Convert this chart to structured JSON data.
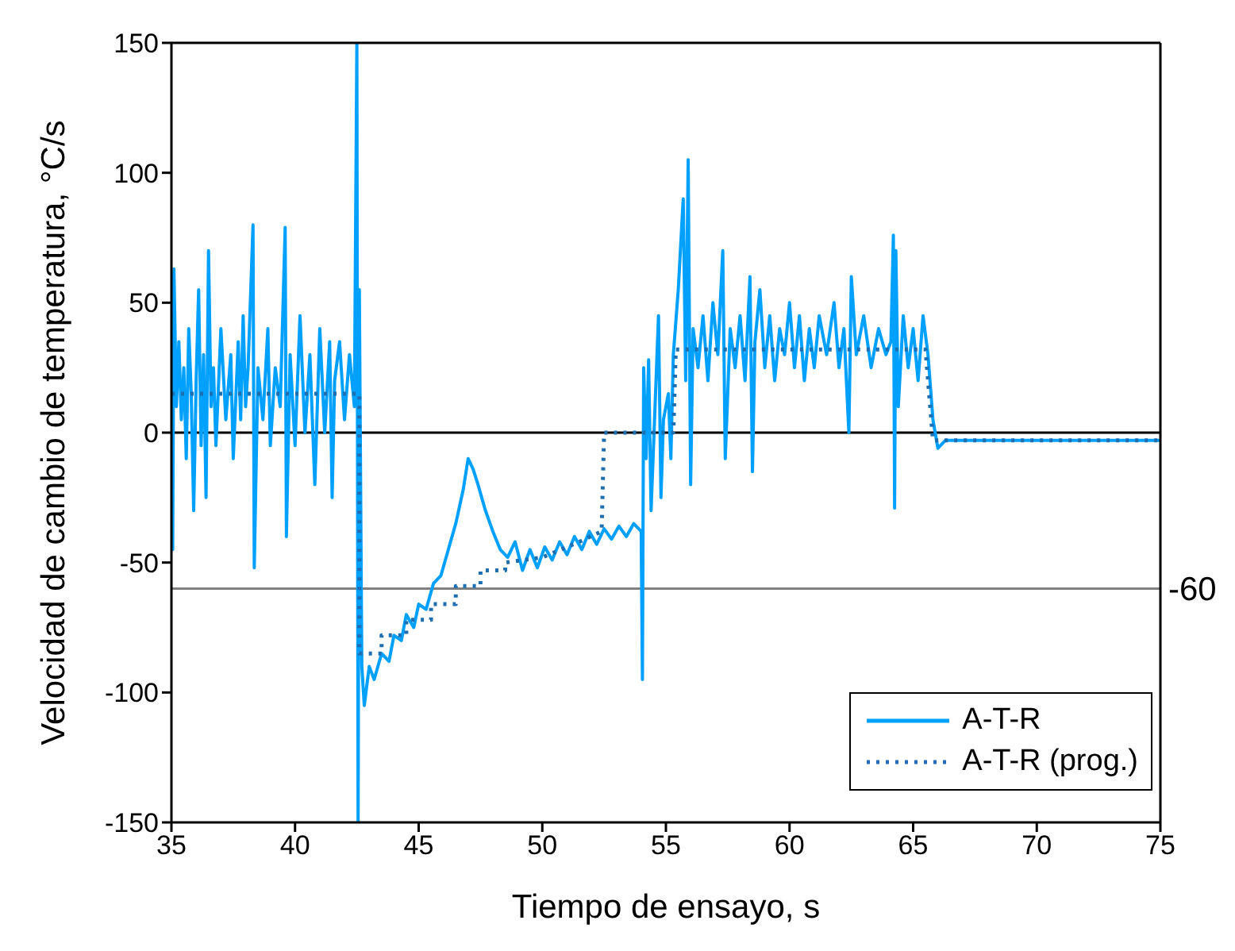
{
  "chart_data": {
    "type": "line",
    "xlabel": "Tiempo de ensayo, s",
    "ylabel": "Velocidad de cambio de temperatura, °C/s",
    "xlim": [
      35,
      75
    ],
    "xticks": [
      35,
      40,
      45,
      50,
      55,
      60,
      65,
      70,
      75
    ],
    "ylim": [
      -150,
      150
    ],
    "yticks": [
      -150,
      -100,
      -50,
      0,
      50,
      100,
      150
    ],
    "legend": "bottom right",
    "marker": "none",
    "ref_lines": [
      {
        "axis": "y",
        "value": 0,
        "label": null,
        "color": "#000000"
      },
      {
        "axis": "y",
        "value": -60,
        "label": "-60",
        "color": "#808080"
      }
    ],
    "series": [
      {
        "name": "A-T-R",
        "color": "#00a0ff",
        "line_style": "solid",
        "x": [
          35.0,
          35.05,
          35.1,
          35.2,
          35.3,
          35.4,
          35.5,
          35.6,
          35.7,
          35.8,
          35.9,
          36.0,
          36.1,
          36.2,
          36.3,
          36.4,
          36.5,
          36.6,
          36.7,
          36.8,
          37.0,
          37.2,
          37.4,
          37.5,
          37.7,
          37.8,
          37.9,
          38.0,
          38.1,
          38.3,
          38.35,
          38.5,
          38.7,
          38.9,
          39.0,
          39.2,
          39.4,
          39.6,
          39.65,
          39.8,
          40.0,
          40.2,
          40.4,
          40.6,
          40.8,
          41.0,
          41.2,
          41.4,
          41.5,
          41.6,
          41.8,
          42.0,
          42.2,
          42.4,
          42.5,
          42.55,
          42.6,
          42.7,
          42.8,
          43.0,
          43.2,
          43.5,
          43.8,
          44.0,
          44.3,
          44.5,
          44.8,
          45.0,
          45.3,
          45.6,
          45.9,
          46.2,
          46.5,
          46.8,
          47.0,
          47.2,
          47.4,
          47.7,
          48.0,
          48.3,
          48.6,
          48.9,
          49.2,
          49.5,
          49.8,
          50.1,
          50.4,
          50.7,
          51.0,
          51.3,
          51.6,
          51.9,
          52.2,
          52.5,
          52.8,
          53.1,
          53.4,
          53.7,
          54.0,
          54.05,
          54.1,
          54.2,
          54.3,
          54.4,
          54.5,
          54.7,
          54.8,
          54.9,
          55.1,
          55.2,
          55.3,
          55.5,
          55.7,
          55.8,
          55.9,
          56.0,
          56.1,
          56.3,
          56.5,
          56.7,
          56.9,
          57.1,
          57.3,
          57.4,
          57.6,
          57.8,
          58.0,
          58.2,
          58.4,
          58.5,
          58.6,
          58.8,
          59.0,
          59.2,
          59.4,
          59.6,
          59.8,
          60.0,
          60.2,
          60.4,
          60.6,
          60.8,
          61.0,
          61.2,
          61.5,
          61.8,
          62.0,
          62.2,
          62.4,
          62.5,
          62.7,
          63.0,
          63.3,
          63.6,
          63.9,
          64.1,
          64.2,
          64.25,
          64.3,
          64.4,
          64.6,
          64.8,
          65.0,
          65.2,
          65.4,
          65.6,
          65.8,
          66.0,
          66.3,
          70.0,
          75.0
        ],
        "values": [
          20,
          -45,
          63,
          10,
          35,
          5,
          25,
          -10,
          40,
          15,
          -30,
          20,
          55,
          -5,
          30,
          -25,
          70,
          10,
          25,
          -5,
          40,
          5,
          30,
          -10,
          35,
          5,
          45,
          10,
          25,
          80,
          -52,
          25,
          5,
          40,
          -5,
          25,
          10,
          79,
          -40,
          30,
          -5,
          45,
          0,
          30,
          -20,
          40,
          0,
          35,
          -25,
          20,
          35,
          5,
          30,
          10,
          150,
          -150,
          55,
          -90,
          -105,
          -90,
          -95,
          -85,
          -88,
          -78,
          -80,
          -70,
          -75,
          -66,
          -68,
          -58,
          -55,
          -45,
          -35,
          -22,
          -10,
          -14,
          -20,
          -30,
          -38,
          -45,
          -48,
          -42,
          -53,
          -45,
          -52,
          -44,
          -49,
          -42,
          -47,
          -40,
          -45,
          -38,
          -43,
          -37,
          -41,
          -36,
          -40,
          -35,
          -38,
          -95,
          25,
          -10,
          28,
          -30,
          -5,
          45,
          -25,
          5,
          15,
          -10,
          30,
          55,
          90,
          20,
          105,
          -20,
          40,
          25,
          45,
          20,
          50,
          30,
          70,
          -10,
          40,
          25,
          45,
          20,
          60,
          -15,
          35,
          55,
          25,
          45,
          20,
          40,
          30,
          50,
          25,
          45,
          20,
          40,
          25,
          45,
          30,
          50,
          25,
          40,
          0,
          60,
          30,
          45,
          25,
          40,
          30,
          35,
          76,
          -29,
          70,
          10,
          45,
          25,
          40,
          20,
          45,
          30,
          5,
          -6,
          -3,
          -3,
          -3
        ]
      },
      {
        "name": "A-T-R (prog.)",
        "color": "#1f6fb0",
        "line_style": "dotted",
        "x": [
          35,
          42.6,
          42.6,
          43.5,
          43.5,
          44.5,
          44.5,
          45.5,
          45.5,
          46.5,
          46.5,
          47.5,
          47.5,
          48.5,
          48.5,
          50,
          51.5,
          52.4,
          52.5,
          55.3,
          55.4,
          65.5,
          65.8,
          75
        ],
        "values": [
          15,
          15,
          -85,
          -85,
          -78,
          -78,
          -72,
          -72,
          -66,
          -66,
          -59,
          -59,
          -53,
          -53,
          -50,
          -48,
          -42,
          -38,
          0,
          0,
          32,
          32,
          -3,
          -3
        ]
      }
    ]
  }
}
